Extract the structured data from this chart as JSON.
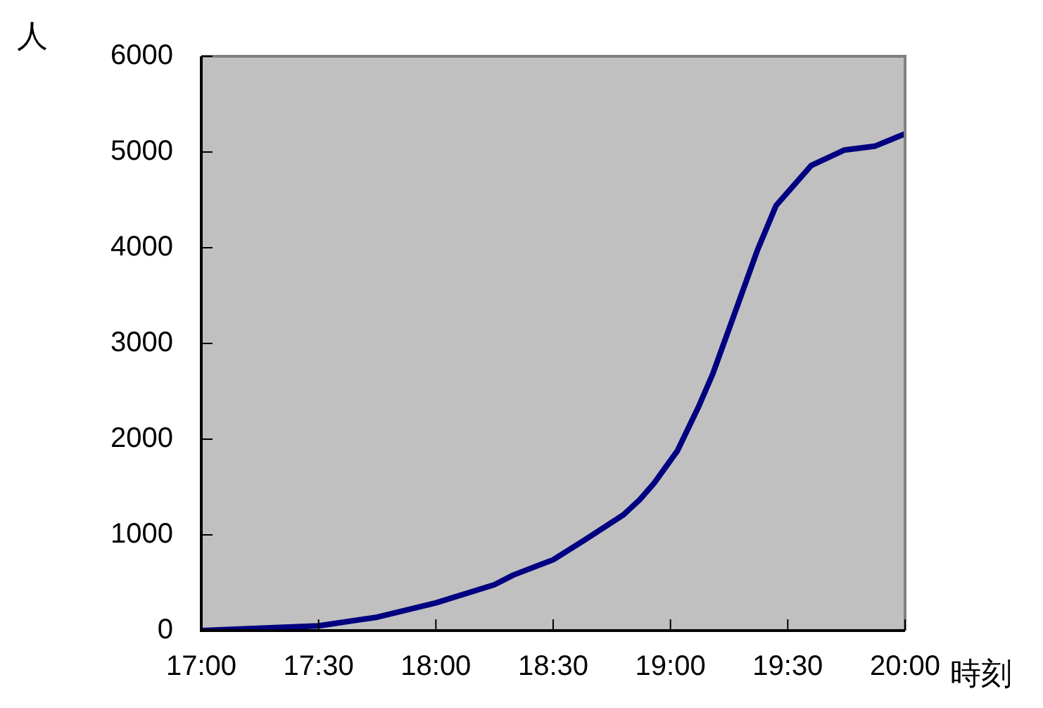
{
  "chart_data": {
    "type": "line",
    "xlabel": "時刻",
    "ylabel": "人",
    "x": [
      17.0,
      17.5,
      17.75,
      18.0,
      18.25,
      18.33,
      18.5,
      18.63,
      18.8,
      18.87,
      18.93,
      19.03,
      19.12,
      19.18,
      19.27,
      19.37,
      19.45,
      19.6,
      19.74,
      19.87,
      20.0
    ],
    "series": [
      {
        "color": "#000080",
        "values": [
          0,
          50,
          140,
          290,
          480,
          580,
          740,
          940,
          1210,
          1370,
          1540,
          1880,
          2340,
          2680,
          3290,
          3970,
          4440,
          4860,
          5020,
          5060,
          5190
        ]
      }
    ],
    "xlim": [
      17,
      20
    ],
    "xticks": [
      {
        "value": 17,
        "label": "17:00"
      },
      {
        "value": 17.5,
        "label": "17:30"
      },
      {
        "value": 18,
        "label": "18:00"
      },
      {
        "value": 18.5,
        "label": "18:30"
      },
      {
        "value": 19,
        "label": "19:00"
      },
      {
        "value": 19.5,
        "label": "19:30"
      },
      {
        "value": 20,
        "label": "20:00"
      }
    ],
    "ylim": [
      0,
      6000
    ],
    "yticks": [
      0,
      1000,
      2000,
      3000,
      4000,
      5000,
      6000
    ],
    "grid": false,
    "legend": false,
    "marker": "none",
    "line_style": "solid"
  }
}
